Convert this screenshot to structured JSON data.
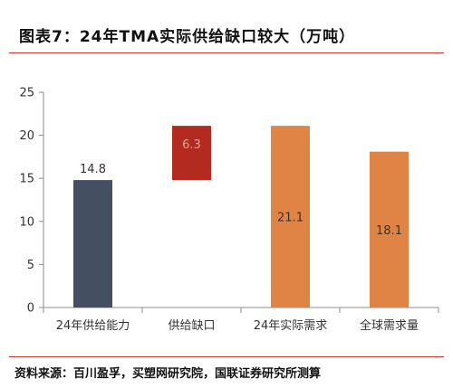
{
  "header": {
    "title": "图表7：24年TMA实际供给缺口较大（万吨）"
  },
  "footer": {
    "source": "资料来源：百川盈孚，买塑网研究院，国联证券研究所测算"
  },
  "colors": {
    "supply": "#454f64",
    "gap": "#b32a20",
    "demand": "#df8445",
    "axis": "#8c8c8c",
    "text": "#333333",
    "rule": "#c0392b"
  },
  "chart_data": {
    "type": "bar",
    "subtype": "waterfall",
    "categories": [
      "24年供给能力",
      "供给缺口",
      "24年实际需求",
      "全球需求量"
    ],
    "values": [
      14.8,
      6.3,
      21.1,
      18.1
    ],
    "bases": [
      0,
      14.8,
      0,
      0
    ],
    "data_labels": [
      "14.8",
      "6.3",
      "21.1",
      "18.1"
    ],
    "ylim": [
      0,
      25
    ],
    "yticks": [
      "0",
      "5",
      "10",
      "15",
      "20",
      "25"
    ],
    "ytick_values": [
      0,
      5,
      10,
      15,
      20,
      25
    ],
    "gridlines": false,
    "legend": "none"
  }
}
